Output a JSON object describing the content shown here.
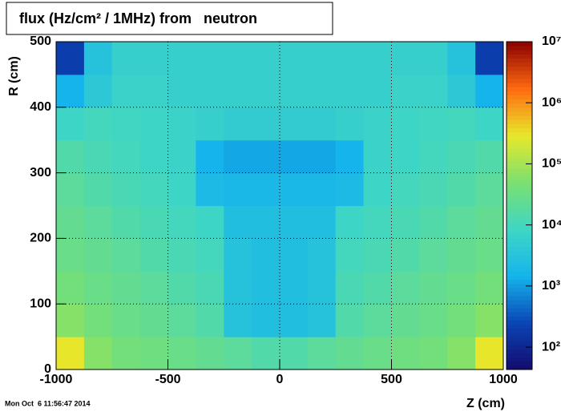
{
  "chart_data": {
    "type": "heatmap",
    "title": "flux (Hz/cm² / 1MHz) from   neutron",
    "x_label": "Z (cm)",
    "y_label": "R (cm)",
    "timestamp": "Mon Oct  6 11:56:47 2014",
    "x_bins": [
      -1000,
      -875,
      -750,
      -625,
      -500,
      -375,
      -250,
      -125,
      0,
      125,
      250,
      375,
      500,
      625,
      750,
      875,
      1000
    ],
    "y_bins": [
      0,
      50,
      100,
      150,
      200,
      250,
      300,
      350,
      400,
      450,
      500
    ],
    "values": [
      [
        300000,
        60000,
        40000,
        35000,
        30000,
        25000,
        20000,
        15000,
        15000,
        20000,
        25000,
        30000,
        35000,
        40000,
        60000,
        300000
      ],
      [
        60000,
        40000,
        30000,
        25000,
        20000,
        15000,
        3000,
        2500,
        2500,
        3000,
        15000,
        20000,
        25000,
        30000,
        40000,
        60000
      ],
      [
        40000,
        30000,
        25000,
        20000,
        15000,
        12000,
        3000,
        2500,
        2500,
        3000,
        12000,
        15000,
        20000,
        25000,
        30000,
        40000
      ],
      [
        30000,
        25000,
        20000,
        15000,
        12000,
        10000,
        3000,
        2500,
        2500,
        3000,
        10000,
        12000,
        15000,
        20000,
        25000,
        30000
      ],
      [
        25000,
        20000,
        15000,
        12000,
        10000,
        8000,
        2500,
        2500,
        2500,
        2500,
        8000,
        10000,
        12000,
        15000,
        20000,
        25000
      ],
      [
        20000,
        15000,
        12000,
        10000,
        8000,
        2000,
        1800,
        1800,
        1800,
        1800,
        2000,
        8000,
        10000,
        12000,
        15000,
        20000
      ],
      [
        15000,
        12000,
        10000,
        8000,
        7000,
        1500,
        1200,
        1200,
        1200,
        1200,
        1500,
        7000,
        8000,
        10000,
        12000,
        15000
      ],
      [
        8000,
        10000,
        9000,
        8000,
        7000,
        6000,
        5000,
        5000,
        5000,
        5000,
        6000,
        7000,
        8000,
        9000,
        10000,
        8000
      ],
      [
        1500,
        4000,
        7000,
        7000,
        6000,
        6000,
        6000,
        6000,
        6000,
        6000,
        6000,
        6000,
        7000,
        7000,
        4000,
        1500
      ],
      [
        200,
        3000,
        6000,
        6000,
        6000,
        6000,
        6000,
        6000,
        6000,
        6000,
        6000,
        6000,
        6000,
        6000,
        3000,
        200
      ]
    ],
    "xlim": [
      -1000,
      1000
    ],
    "xticks": [
      -1000,
      -500,
      0,
      500,
      1000
    ],
    "ylim": [
      0,
      500
    ],
    "yticks": [
      0,
      100,
      200,
      300,
      400,
      500
    ],
    "zlim": [
      43,
      10000000
    ],
    "zticks": [
      {
        "value": 100,
        "label": "10²"
      },
      {
        "value": 1000,
        "label": "10³"
      },
      {
        "value": 10000,
        "label": "10⁴"
      },
      {
        "value": 100000,
        "label": "10⁵"
      },
      {
        "value": 1000000,
        "label": "10⁶"
      },
      {
        "value": 10000000,
        "label": "10⁷"
      }
    ],
    "log_z": true,
    "grid": true,
    "colormap": [
      "#140a6e",
      "#0a45b5",
      "#15b4ec",
      "#3fd6c4",
      "#7be070",
      "#e8e82a",
      "#ff6a10",
      "#8b0000"
    ]
  }
}
